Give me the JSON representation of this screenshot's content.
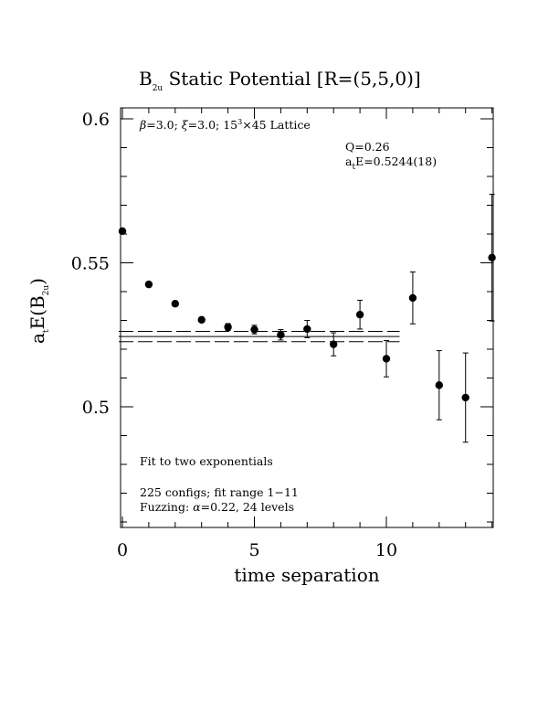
{
  "chart_data": {
    "type": "scatter",
    "title": {
      "main": "B",
      "sub": "2u",
      "rest": " Static Potential [R=(5,5,0)]"
    },
    "xlabel": "time separation",
    "ylabel": {
      "pre": "a",
      "sub1": "t",
      "mid": "E(B",
      "sub2": "2u",
      "post": ")"
    },
    "xlim": [
      0,
      14
    ],
    "ylim": [
      0.458,
      0.605
    ],
    "x_ticks": [
      0,
      5,
      10
    ],
    "x_tick_labels": [
      "0",
      "5",
      "10"
    ],
    "y_ticks": [
      0.5,
      0.55,
      0.6
    ],
    "y_tick_labels": [
      "0.5",
      "0.55",
      "0.6"
    ],
    "x_minor_step": 1,
    "y_minor_step": 0.01,
    "annotations": {
      "lattice": {
        "beta": "β",
        "eq1": "=3.0; ",
        "xi": "ξ",
        "eq2": "=3.0; 15",
        "sup": "3",
        "rest": "×45 Lattice"
      },
      "q": "Q=0.26",
      "energy": {
        "pre": "a",
        "sub": "t",
        "rest": "E=0.5244(18)"
      },
      "fit": "Fit to two exponentials",
      "configs": "225 configs; fit range 1−11",
      "fuzzing": {
        "pre": "Fuzzing: ",
        "alpha": "α",
        "rest": "=0.22, 24 levels"
      }
    },
    "fit": {
      "central": 0.5244,
      "error": 0.0018,
      "t_range": [
        0,
        10.5
      ]
    },
    "points": [
      {
        "x": 0,
        "y": 0.561,
        "err": 0
      },
      {
        "x": 1,
        "y": 0.5425,
        "err": 0
      },
      {
        "x": 2,
        "y": 0.5358,
        "err": 0
      },
      {
        "x": 3,
        "y": 0.5302,
        "err": 0
      },
      {
        "x": 4,
        "y": 0.5277,
        "err": 0.0012
      },
      {
        "x": 5,
        "y": 0.5268,
        "err": 0.0015
      },
      {
        "x": 6,
        "y": 0.525,
        "err": 0.0018
      },
      {
        "x": 7,
        "y": 0.527,
        "err": 0.003
      },
      {
        "x": 8,
        "y": 0.5217,
        "err": 0.004
      },
      {
        "x": 9,
        "y": 0.532,
        "err": 0.005
      },
      {
        "x": 10,
        "y": 0.5167,
        "err": 0.0063
      },
      {
        "x": 11,
        "y": 0.5378,
        "err": 0.009
      },
      {
        "x": 12,
        "y": 0.5075,
        "err": 0.012
      },
      {
        "x": 13,
        "y": 0.5032,
        "err": 0.0155
      },
      {
        "x": 14,
        "y": 0.5518,
        "err": 0.022
      }
    ]
  }
}
